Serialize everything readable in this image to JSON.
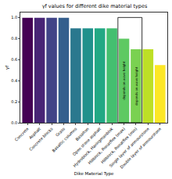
{
  "chart_data": {
    "type": "bar",
    "title": "γf values for different dike material types",
    "x_label": "Dike Material Type",
    "y_label": "γf",
    "categories": [
      "Concrete",
      "Asphalt",
      "Concrete blocks",
      "Grass",
      "Basaltic columns",
      "Basalton",
      "Open stone asphalt",
      "Hydroblock, Haringmanblok",
      "Hillblock, Ronatflex (max)",
      "Hillblock, Ronatflex (min)",
      "Single layer of armourstone",
      "Double layer of armourstone"
    ],
    "values": [
      1.0,
      1.0,
      1.0,
      1.0,
      0.9,
      0.9,
      0.9,
      0.9,
      0.8,
      0.7,
      0.7,
      0.55
    ],
    "colors": [
      "#440154",
      "#482475",
      "#414487",
      "#355f8d",
      "#2a788e",
      "#21918c",
      "#22a884",
      "#44bf70",
      "#5ec962",
      "#7ad151",
      "#bddf26",
      "#fde725"
    ],
    "ylim": [
      0,
      1.05
    ],
    "yticks": [
      {
        "value": 0,
        "label": "0.0"
      },
      {
        "value": 0.2,
        "label": "0.2"
      },
      {
        "value": 0.4,
        "label": "0.4"
      },
      {
        "value": 0.6,
        "label": "0.6"
      },
      {
        "value": 0.8,
        "label": "0.8"
      },
      {
        "value": 1.0,
        "label": "1.0"
      }
    ],
    "grid": false,
    "annotations": [
      {
        "category": "Hillblock, Ronatflex (max)",
        "text": "depends on wave height"
      },
      {
        "category": "Hillblock, Ronatflex (min)",
        "text": "depends on wave height"
      }
    ]
  }
}
